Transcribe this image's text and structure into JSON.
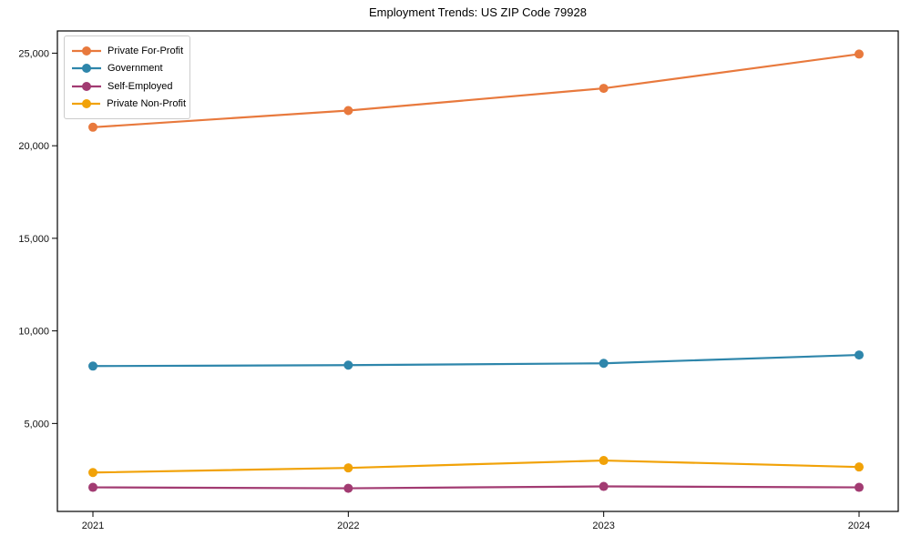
{
  "title": "Employment Trends: US ZIP Code 79928",
  "chart_data": {
    "type": "line",
    "title": "Employment Trends: US ZIP Code 79928",
    "categories": [
      "2021",
      "2022",
      "2023",
      "2024"
    ],
    "series": [
      {
        "name": "Private For-Profit",
        "color": "#E8793D",
        "values": [
          21000,
          21900,
          23100,
          24950
        ]
      },
      {
        "name": "Government",
        "color": "#2E86AB",
        "values": [
          8100,
          8150,
          8250,
          8700
        ]
      },
      {
        "name": "Self-Employed",
        "color": "#A23B72",
        "values": [
          1550,
          1500,
          1600,
          1550
        ]
      },
      {
        "name": "Private Non-Profit",
        "color": "#F1A208",
        "values": [
          2350,
          2600,
          3000,
          2650
        ]
      }
    ],
    "xlabel": "",
    "ylabel": "",
    "yticks": [
      5000,
      10000,
      15000,
      20000,
      25000
    ],
    "ytick_labels": [
      "5,000",
      "10,000",
      "15,000",
      "20,000",
      "25,000"
    ],
    "ylim": [
      250,
      26200
    ],
    "grid": false,
    "legend_position": "upper-left",
    "marker": "circle"
  }
}
